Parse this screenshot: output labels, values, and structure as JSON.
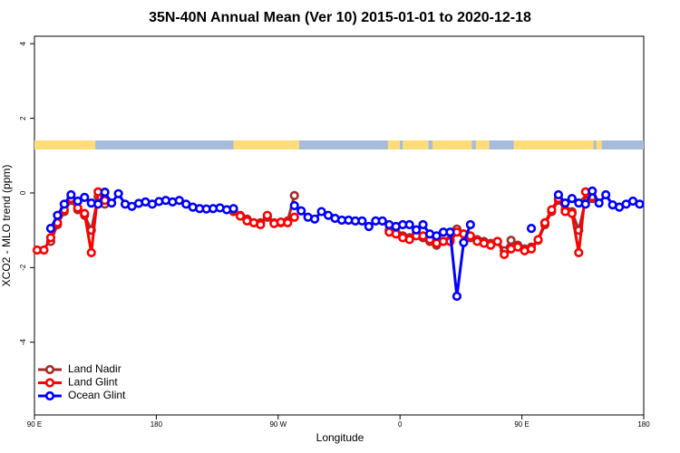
{
  "chart_data": {
    "type": "line",
    "title": "35N-40N Annual Mean (Ver 10)   2015-01-01 to 2020-12-18",
    "x_label": "Longitude",
    "y_label": "XCO2 - MLO trend (ppm)",
    "xlim": [
      90,
      540
    ],
    "xticks": [
      {
        "value": 90,
        "label": "90 E"
      },
      {
        "value": 180,
        "label": "180"
      },
      {
        "value": 270,
        "label": "90 W"
      },
      {
        "value": 360,
        "label": "0"
      },
      {
        "value": 450,
        "label": "90 E"
      },
      {
        "value": 540,
        "label": "180"
      }
    ],
    "ylim": [
      -5.95,
      4.2
    ],
    "yticks": [
      -4,
      -2,
      0,
      2,
      4
    ],
    "grid": false,
    "legend": "bottom-left",
    "land_color": "#ffdc78",
    "ocean_color": "#a7bcdd",
    "land_segments": [
      [
        90,
        135
      ],
      [
        237,
        285.5
      ],
      [
        351,
        360
      ],
      [
        362,
        381
      ],
      [
        384,
        413
      ],
      [
        416,
        426
      ],
      [
        444,
        503
      ],
      [
        505,
        509
      ]
    ],
    "x": [
      92,
      97,
      102,
      107,
      112,
      117,
      122,
      127,
      132,
      137,
      142,
      147,
      152,
      157,
      162,
      167,
      172,
      177,
      182,
      187,
      192,
      197,
      202,
      207,
      212,
      217,
      222,
      227,
      232,
      237,
      242,
      247,
      252,
      257,
      262,
      267,
      272,
      277,
      282,
      287,
      292,
      297,
      302,
      307,
      312,
      317,
      322,
      327,
      332,
      337,
      342,
      347,
      352,
      357,
      362,
      367,
      372,
      377,
      382,
      387,
      392,
      397,
      402,
      407,
      412,
      417,
      422,
      427,
      432,
      437,
      442,
      447,
      452,
      457,
      462,
      467,
      472,
      477,
      482,
      487,
      492,
      497,
      502,
      507,
      512,
      517,
      522,
      527,
      532,
      537
    ],
    "series": [
      {
        "name": "Land Nadir",
        "color": "#a52a2a",
        "values": [
          null,
          null,
          -1.3,
          -0.85,
          -0.5,
          -0.2,
          -0.45,
          -0.6,
          -1.0,
          -0.1,
          -0.3,
          null,
          null,
          null,
          null,
          null,
          null,
          null,
          null,
          null,
          null,
          null,
          null,
          null,
          null,
          null,
          null,
          null,
          null,
          -0.5,
          -0.6,
          -0.7,
          -0.8,
          -0.8,
          -0.65,
          -0.8,
          -0.8,
          -0.75,
          -0.07,
          null,
          null,
          null,
          null,
          null,
          null,
          null,
          null,
          null,
          null,
          null,
          null,
          null,
          -1.0,
          -1.05,
          -1.15,
          -1.2,
          -1.1,
          -1.2,
          -1.3,
          -1.4,
          -1.3,
          -1.25,
          -0.97,
          -1.1,
          -1.2,
          -1.25,
          -1.3,
          -1.35,
          -1.3,
          -1.55,
          -1.27,
          -1.4,
          -1.5,
          -1.45,
          -1.27,
          -0.85,
          -0.5,
          -0.2,
          -0.45,
          -0.5,
          -1.0,
          -0.2,
          -0.15,
          null,
          null,
          null,
          null,
          null,
          null,
          null
        ]
      },
      {
        "name": "Land Glint",
        "color": "#ff0000",
        "values": [
          -1.53,
          -1.53,
          -1.2,
          -0.8,
          -0.45,
          -0.15,
          -0.4,
          -0.55,
          -1.6,
          0.03,
          -0.2,
          null,
          null,
          null,
          null,
          null,
          null,
          null,
          null,
          null,
          null,
          null,
          null,
          null,
          null,
          null,
          null,
          null,
          null,
          -0.45,
          -0.62,
          -0.75,
          -0.8,
          -0.85,
          -0.6,
          -0.82,
          -0.78,
          -0.8,
          -0.65,
          null,
          null,
          null,
          null,
          null,
          null,
          null,
          null,
          null,
          null,
          null,
          null,
          null,
          -1.05,
          -1.1,
          -1.2,
          -1.25,
          -1.15,
          -1.15,
          -1.25,
          -1.35,
          -1.3,
          -1.3,
          -1.05,
          -1.1,
          -1.15,
          -1.3,
          -1.35,
          -1.4,
          -1.3,
          -1.65,
          -1.5,
          -1.45,
          -1.55,
          -1.5,
          -1.25,
          -0.8,
          -0.45,
          -0.15,
          -0.5,
          -0.55,
          -1.6,
          0.03,
          -0.1,
          null,
          null,
          null,
          null,
          null,
          null,
          null
        ]
      },
      {
        "name": "Ocean Glint",
        "color": "#0000ff",
        "values": [
          null,
          null,
          -0.95,
          -0.6,
          -0.3,
          -0.05,
          -0.22,
          -0.12,
          -0.27,
          -0.3,
          0.02,
          -0.27,
          -0.02,
          -0.3,
          -0.36,
          -0.28,
          -0.24,
          -0.3,
          -0.23,
          -0.2,
          -0.24,
          -0.2,
          -0.3,
          -0.38,
          -0.42,
          -0.43,
          -0.42,
          -0.4,
          -0.45,
          -0.42,
          null,
          null,
          null,
          null,
          null,
          null,
          null,
          null,
          -0.34,
          -0.48,
          -0.65,
          -0.7,
          -0.5,
          -0.6,
          -0.68,
          -0.73,
          -0.73,
          -0.75,
          -0.75,
          -0.9,
          -0.75,
          -0.75,
          -0.85,
          -0.9,
          -0.85,
          -0.85,
          -0.99,
          -0.85,
          -1.1,
          -1.15,
          -1.05,
          -1.05,
          -2.77,
          -1.33,
          -0.85,
          null,
          null,
          null,
          null,
          null,
          null,
          null,
          null,
          -0.95,
          null,
          null,
          null,
          -0.05,
          -0.27,
          -0.15,
          -0.27,
          -0.3,
          0.05,
          -0.27,
          -0.05,
          -0.32,
          -0.38,
          -0.3,
          -0.22,
          -0.3
        ]
      }
    ]
  }
}
